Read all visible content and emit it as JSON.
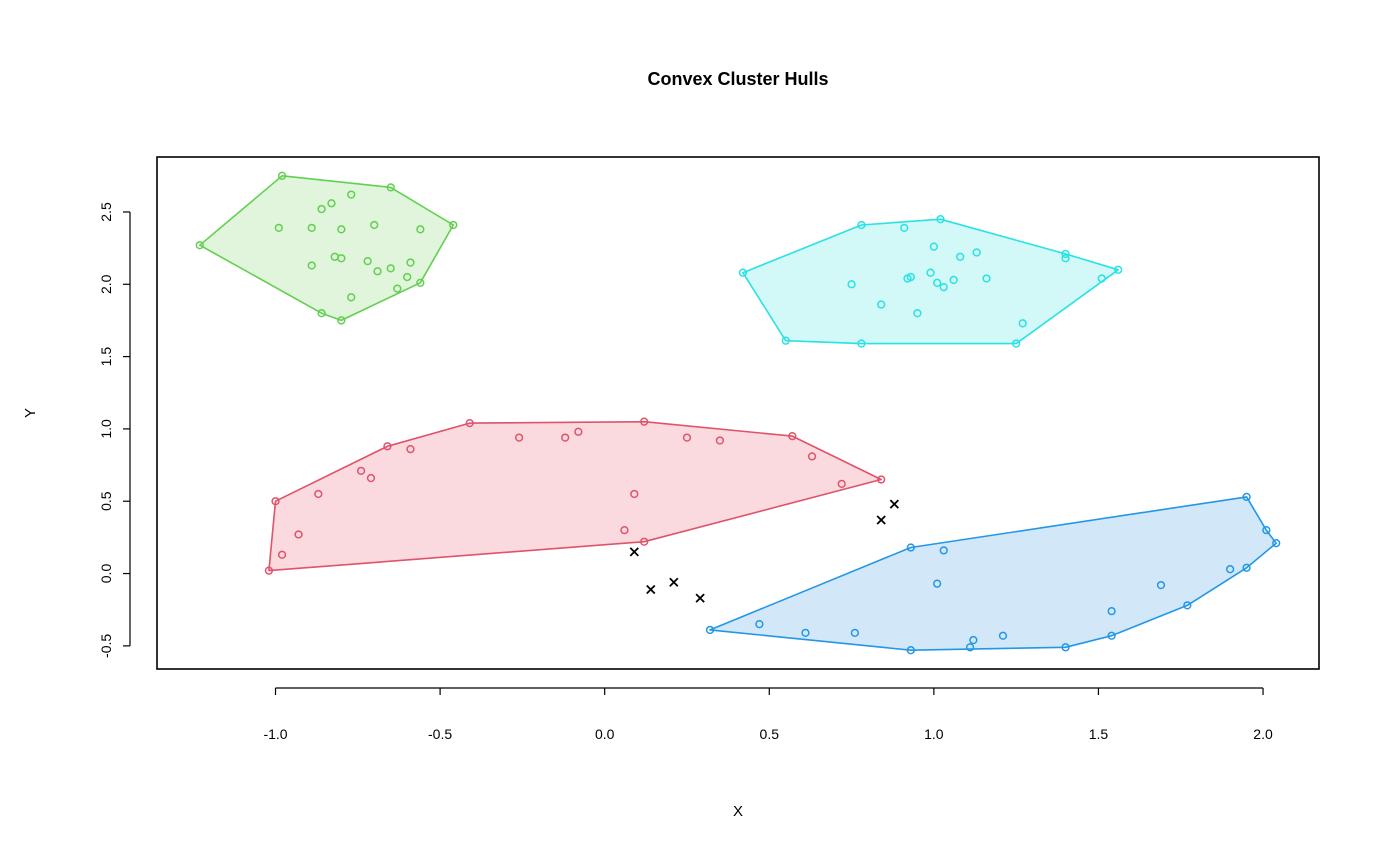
{
  "chart_data": {
    "type": "scatter",
    "title": "Convex Cluster Hulls",
    "xlabel": "X",
    "ylabel": "Y",
    "xlim": [
      -1.36,
      2.17
    ],
    "ylim": [
      -0.66,
      2.88
    ],
    "x_ticks": [
      -1.0,
      -0.5,
      0.0,
      0.5,
      1.0,
      1.5,
      2.0
    ],
    "x_tick_labels": [
      "-1.0",
      "-0.5",
      "0.0",
      "0.5",
      "1.0",
      "1.5",
      "2.0"
    ],
    "y_ticks": [
      -0.5,
      0.0,
      0.5,
      1.0,
      1.5,
      2.0,
      2.5
    ],
    "y_tick_labels": [
      "-0.5",
      "0.0",
      "0.5",
      "1.0",
      "1.5",
      "2.0",
      "2.5"
    ],
    "grid": false,
    "series": [
      {
        "color": "#61D04F",
        "fill": "#E0F5DC",
        "marker": "circle",
        "hull": [
          [
            -0.98,
            2.75
          ],
          [
            -0.65,
            2.67
          ],
          [
            -0.46,
            2.41
          ],
          [
            -0.56,
            2.01
          ],
          [
            -0.8,
            1.75
          ],
          [
            -0.86,
            1.8
          ],
          [
            -1.23,
            2.27
          ]
        ],
        "points": [
          [
            -0.98,
            2.75
          ],
          [
            -0.65,
            2.67
          ],
          [
            -0.46,
            2.41
          ],
          [
            -0.56,
            2.01
          ],
          [
            -0.8,
            1.75
          ],
          [
            -0.86,
            1.8
          ],
          [
            -1.23,
            2.27
          ],
          [
            -0.99,
            2.39
          ],
          [
            -0.89,
            2.39
          ],
          [
            -0.86,
            2.52
          ],
          [
            -0.83,
            2.56
          ],
          [
            -0.77,
            2.62
          ],
          [
            -0.8,
            2.38
          ],
          [
            -0.7,
            2.41
          ],
          [
            -0.56,
            2.38
          ],
          [
            -0.89,
            2.13
          ],
          [
            -0.82,
            2.19
          ],
          [
            -0.8,
            2.18
          ],
          [
            -0.72,
            2.16
          ],
          [
            -0.69,
            2.09
          ],
          [
            -0.65,
            2.11
          ],
          [
            -0.6,
            2.05
          ],
          [
            -0.59,
            2.15
          ],
          [
            -0.63,
            1.97
          ],
          [
            -0.77,
            1.91
          ]
        ]
      },
      {
        "color": "#28E2E5",
        "fill": "#D3F8F8",
        "marker": "circle",
        "hull": [
          [
            0.42,
            2.08
          ],
          [
            0.78,
            2.41
          ],
          [
            1.02,
            2.45
          ],
          [
            1.4,
            2.21
          ],
          [
            1.56,
            2.1
          ],
          [
            1.25,
            1.59
          ],
          [
            0.78,
            1.59
          ],
          [
            0.55,
            1.61
          ]
        ],
        "points": [
          [
            0.42,
            2.08
          ],
          [
            0.78,
            2.41
          ],
          [
            1.02,
            2.45
          ],
          [
            1.4,
            2.21
          ],
          [
            1.56,
            2.1
          ],
          [
            1.25,
            1.59
          ],
          [
            0.78,
            1.59
          ],
          [
            0.55,
            1.61
          ],
          [
            0.91,
            2.39
          ],
          [
            1.0,
            2.26
          ],
          [
            1.13,
            2.22
          ],
          [
            1.08,
            2.19
          ],
          [
            1.4,
            2.18
          ],
          [
            0.99,
            2.08
          ],
          [
            0.93,
            2.05
          ],
          [
            0.92,
            2.04
          ],
          [
            1.06,
            2.03
          ],
          [
            1.01,
            2.01
          ],
          [
            1.03,
            1.98
          ],
          [
            1.16,
            2.04
          ],
          [
            1.51,
            2.04
          ],
          [
            0.75,
            2.0
          ],
          [
            0.84,
            1.86
          ],
          [
            0.95,
            1.8
          ],
          [
            1.27,
            1.73
          ]
        ]
      },
      {
        "color": "#DF536B",
        "fill": "#FADADF",
        "marker": "circle",
        "hull": [
          [
            -1.0,
            0.5
          ],
          [
            -0.66,
            0.88
          ],
          [
            -0.41,
            1.04
          ],
          [
            0.12,
            1.05
          ],
          [
            0.57,
            0.95
          ],
          [
            0.84,
            0.65
          ],
          [
            0.12,
            0.22
          ],
          [
            -1.02,
            0.02
          ]
        ],
        "points": [
          [
            -1.0,
            0.5
          ],
          [
            -0.66,
            0.88
          ],
          [
            -0.41,
            1.04
          ],
          [
            0.12,
            1.05
          ],
          [
            0.57,
            0.95
          ],
          [
            0.84,
            0.65
          ],
          [
            0.12,
            0.22
          ],
          [
            -1.02,
            0.02
          ],
          [
            -0.26,
            0.94
          ],
          [
            -0.12,
            0.94
          ],
          [
            -0.08,
            0.98
          ],
          [
            0.25,
            0.94
          ],
          [
            0.35,
            0.92
          ],
          [
            -0.59,
            0.86
          ],
          [
            0.63,
            0.81
          ],
          [
            -0.74,
            0.71
          ],
          [
            -0.71,
            0.66
          ],
          [
            0.72,
            0.62
          ],
          [
            -0.87,
            0.55
          ],
          [
            0.09,
            0.55
          ],
          [
            0.06,
            0.3
          ],
          [
            -0.93,
            0.27
          ],
          [
            -0.98,
            0.13
          ]
        ]
      },
      {
        "color": "#2297E6",
        "fill": "#D2E8F9",
        "marker": "circle",
        "hull": [
          [
            0.32,
            -0.39
          ],
          [
            0.93,
            0.18
          ],
          [
            1.95,
            0.53
          ],
          [
            2.01,
            0.3
          ],
          [
            2.04,
            0.21
          ],
          [
            1.95,
            0.04
          ],
          [
            1.77,
            -0.22
          ],
          [
            1.54,
            -0.43
          ],
          [
            1.4,
            -0.51
          ],
          [
            0.93,
            -0.53
          ]
        ],
        "points": [
          [
            0.32,
            -0.39
          ],
          [
            0.93,
            0.18
          ],
          [
            1.95,
            0.53
          ],
          [
            2.01,
            0.3
          ],
          [
            2.04,
            0.21
          ],
          [
            1.95,
            0.04
          ],
          [
            1.77,
            -0.22
          ],
          [
            1.54,
            -0.43
          ],
          [
            1.4,
            -0.51
          ],
          [
            0.93,
            -0.53
          ],
          [
            1.03,
            0.16
          ],
          [
            1.01,
            -0.07
          ],
          [
            1.69,
            -0.08
          ],
          [
            1.9,
            0.03
          ],
          [
            1.54,
            -0.26
          ],
          [
            0.47,
            -0.35
          ],
          [
            0.61,
            -0.41
          ],
          [
            0.76,
            -0.41
          ],
          [
            1.12,
            -0.46
          ],
          [
            1.21,
            -0.43
          ],
          [
            1.11,
            -0.51
          ]
        ]
      },
      {
        "color": "#000000",
        "marker": "cross",
        "points": [
          [
            0.09,
            0.15
          ],
          [
            0.14,
            -0.11
          ],
          [
            0.21,
            -0.06
          ],
          [
            0.29,
            -0.17
          ],
          [
            0.84,
            0.37
          ],
          [
            0.88,
            0.48
          ]
        ]
      }
    ]
  }
}
